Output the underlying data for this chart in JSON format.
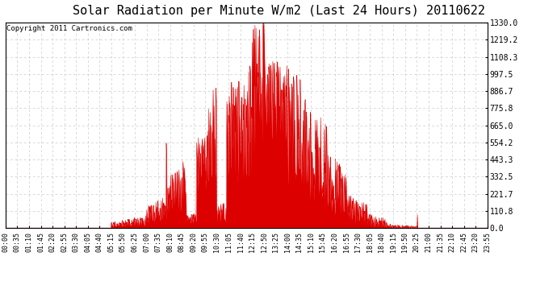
{
  "title": "Solar Radiation per Minute W/m2 (Last 24 Hours) 20110622",
  "copyright": "Copyright 2011 Cartronics.com",
  "yticks": [
    0.0,
    110.8,
    221.7,
    332.5,
    443.3,
    554.2,
    665.0,
    775.8,
    886.7,
    997.5,
    1108.3,
    1219.2,
    1330.0
  ],
  "ymax": 1330.0,
  "ymin": 0.0,
  "fill_color": "#DD0000",
  "line_color": "#DD0000",
  "background_color": "#ffffff",
  "grid_color": "#bbbbbb",
  "dashed_line_color": "#DD0000",
  "title_fontsize": 11,
  "copyright_fontsize": 6.5,
  "tick_fontsize": 6,
  "ytick_fontsize": 7,
  "xtick_labels": [
    "00:00",
    "00:35",
    "01:10",
    "01:45",
    "02:20",
    "02:55",
    "03:30",
    "04:05",
    "04:40",
    "05:15",
    "05:50",
    "06:25",
    "07:00",
    "07:35",
    "08:10",
    "08:45",
    "09:20",
    "09:55",
    "10:30",
    "11:05",
    "11:40",
    "12:15",
    "12:50",
    "13:25",
    "14:00",
    "14:35",
    "15:10",
    "15:45",
    "16:20",
    "16:55",
    "17:30",
    "18:05",
    "18:40",
    "19:15",
    "19:50",
    "20:25",
    "21:00",
    "21:35",
    "22:10",
    "22:45",
    "23:20",
    "23:55"
  ],
  "num_points": 1440,
  "seed": 42
}
